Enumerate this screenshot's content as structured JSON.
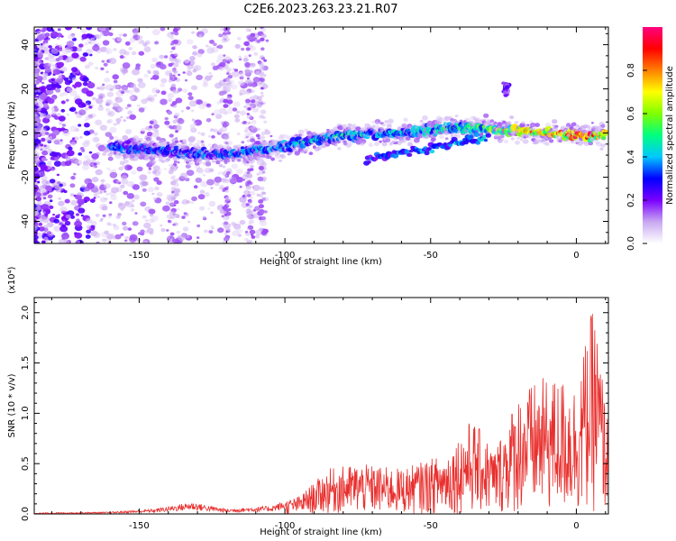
{
  "title": "C2E6.2023.263.23.21.R07",
  "chart_data": [
    {
      "type": "heatmap",
      "name": "spectrogram",
      "xlabel": "Height of straight line (km)",
      "ylabel": "Frequency (Hz)",
      "xlim": [
        -186,
        11
      ],
      "ylim": [
        -50,
        48
      ],
      "xticks": [
        -150,
        -100,
        -50,
        0
      ],
      "yticks": [
        -40,
        -20,
        0,
        20,
        40
      ],
      "colorbar": {
        "label": "Normalized spectral amplitude",
        "range": [
          0,
          1
        ],
        "ticks": [
          0.0,
          0.2,
          0.4,
          0.6,
          0.8
        ],
        "colors": [
          "#ffffff",
          "#c8a8f0",
          "#7a00ff",
          "#0000ff",
          "#00c8ff",
          "#00ff80",
          "#80ff00",
          "#ffff00",
          "#ff8000",
          "#ff0000",
          "#ff0080"
        ]
      },
      "ridge": [
        {
          "x": -160,
          "y": -6,
          "a": 0.35
        },
        {
          "x": -150,
          "y": -7,
          "a": 0.38
        },
        {
          "x": -140,
          "y": -8,
          "a": 0.33
        },
        {
          "x": -130,
          "y": -10,
          "a": 0.36
        },
        {
          "x": -120,
          "y": -10,
          "a": 0.36
        },
        {
          "x": -110,
          "y": -8,
          "a": 0.38
        },
        {
          "x": -100,
          "y": -6,
          "a": 0.42
        },
        {
          "x": -90,
          "y": -3,
          "a": 0.42
        },
        {
          "x": -80,
          "y": -1,
          "a": 0.45
        },
        {
          "x": -70,
          "y": 0,
          "a": 0.42
        },
        {
          "x": -60,
          "y": 0,
          "a": 0.42
        },
        {
          "x": -50,
          "y": 1,
          "a": 0.45
        },
        {
          "x": -40,
          "y": 3,
          "a": 0.5
        },
        {
          "x": -30,
          "y": 2,
          "a": 0.6
        },
        {
          "x": -20,
          "y": 1,
          "a": 0.75
        },
        {
          "x": -10,
          "y": 0,
          "a": 0.8
        },
        {
          "x": 0,
          "y": -1,
          "a": 0.9
        },
        {
          "x": 10,
          "y": -1,
          "a": 0.85
        }
      ],
      "branch": [
        {
          "x": -72,
          "y": -12,
          "a": 0.3
        },
        {
          "x": -60,
          "y": -9,
          "a": 0.32
        },
        {
          "x": -50,
          "y": -7,
          "a": 0.35
        },
        {
          "x": -40,
          "y": -4,
          "a": 0.38
        },
        {
          "x": -30,
          "y": -2,
          "a": 0.4
        }
      ]
    },
    {
      "type": "line",
      "name": "snr",
      "xlabel": "Height of straight line (km)",
      "ylabel": "SNR (10 * v/v)",
      "multiplier": "(x10⁴)",
      "xlim": [
        -186,
        11
      ],
      "ylim": [
        0,
        2.15
      ],
      "xticks": [
        -150,
        -100,
        -50,
        0
      ],
      "yticks": [
        0.0,
        0.5,
        1.0,
        1.5,
        2.0
      ],
      "color": "#e8302e",
      "envelope": [
        {
          "x": -186,
          "y": 0.01
        },
        {
          "x": -160,
          "y": 0.02
        },
        {
          "x": -145,
          "y": 0.05
        },
        {
          "x": -132,
          "y": 0.12
        },
        {
          "x": -120,
          "y": 0.05
        },
        {
          "x": -105,
          "y": 0.08
        },
        {
          "x": -95,
          "y": 0.18
        },
        {
          "x": -85,
          "y": 0.45
        },
        {
          "x": -75,
          "y": 0.5
        },
        {
          "x": -60,
          "y": 0.45
        },
        {
          "x": -45,
          "y": 0.6
        },
        {
          "x": -36,
          "y": 0.95
        },
        {
          "x": -28,
          "y": 0.65
        },
        {
          "x": -20,
          "y": 1.2
        },
        {
          "x": -12,
          "y": 1.35
        },
        {
          "x": -5,
          "y": 1.35
        },
        {
          "x": 0,
          "y": 1.3
        },
        {
          "x": 6,
          "y": 2.1
        },
        {
          "x": 11,
          "y": 0.9
        }
      ]
    }
  ]
}
